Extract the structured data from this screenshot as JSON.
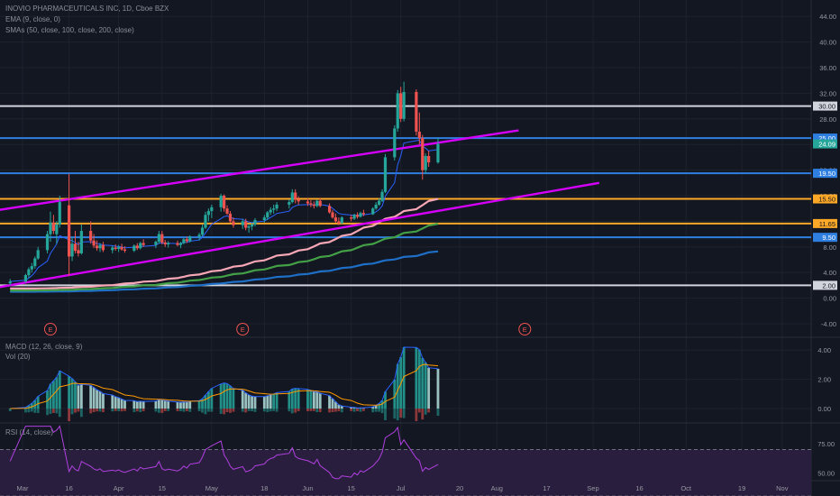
{
  "header": {
    "symbol_line": "INOVIO PHARMACEUTICALS INC, 1D, Cboe BZX",
    "ema_line": "EMA (9, close, 0)",
    "sma_line": "SMAs (50, close, 100, close, 200, close)",
    "macd_line": "MACD (12, 26, close, 9)",
    "vol_line": "Vol (20)",
    "rsi_line": "RSI (14, close)"
  },
  "colors": {
    "background": "#131722",
    "grid": "#1e222d",
    "up": "#26a69a",
    "down": "#ef5350",
    "ema": "#2962ff",
    "sma50": "#f7a7b5",
    "sma100": "#43a047",
    "sma200": "#1e6fc7",
    "trend": "#d500f9",
    "white_line": "#d1d4dc",
    "blue_line": "#2f7fe0",
    "orange_line": "#ffa726",
    "rsi_line": "#b040e0",
    "rsi_band": "#2a1e3e",
    "macd": "#2962ff",
    "signal": "#ff9800"
  },
  "x_axis": {
    "labels": [
      "Mar",
      "16",
      "Apr",
      "15",
      "May",
      "18",
      "Jun",
      "15",
      "Jul",
      "20",
      "Aug",
      "17",
      "Sep",
      "16",
      "Oct",
      "19",
      "Nov"
    ]
  },
  "price_axis": {
    "ticks": [
      "44.00",
      "40.00",
      "36.00",
      "32.00",
      "28.00",
      "24.00",
      "20.00",
      "16.00",
      "12.00",
      "8.00",
      "4.00",
      "0.00",
      "-4.00"
    ]
  },
  "macd_axis": {
    "ticks": [
      "4.00",
      "2.00",
      "0.00"
    ]
  },
  "rsi_axis": {
    "ticks": [
      "75.00",
      "50.00",
      "25.00"
    ]
  },
  "earnings_marker": "E",
  "horizontal_levels": [
    {
      "label": "30.00",
      "kind": "white"
    },
    {
      "label": "25.00",
      "kind": "blue"
    },
    {
      "label": "19.50",
      "kind": "blue"
    },
    {
      "label": "15.50",
      "kind": "orange"
    },
    {
      "label": "11.65",
      "kind": "orange"
    },
    {
      "label": "9.50",
      "kind": "blue"
    },
    {
      "label": "2.00",
      "kind": "white"
    }
  ],
  "last_price": "24.09",
  "chart_data": {
    "type": "candlestick",
    "title": "INOVIO PHARMACEUTICALS INC, 1D, Cboe BZX",
    "ylim": [
      -6,
      46
    ],
    "x_range": [
      "Feb 26",
      "Nov 10"
    ],
    "earnings_dates": [
      "Mar 10",
      "May 11",
      "Aug 10"
    ],
    "candles": [
      {
        "date": "Feb 26",
        "o": 2.3,
        "h": 3.0,
        "l": 2.0,
        "c": 2.6
      },
      {
        "date": "Mar 2",
        "o": 2.6,
        "h": 3.8,
        "l": 2.4,
        "c": 3.6
      },
      {
        "date": "Mar 3",
        "o": 3.6,
        "h": 4.8,
        "l": 3.2,
        "c": 4.5
      },
      {
        "date": "Mar 4",
        "o": 4.5,
        "h": 5.5,
        "l": 4.0,
        "c": 5.0
      },
      {
        "date": "Mar 5",
        "o": 5.0,
        "h": 6.5,
        "l": 4.6,
        "c": 6.2
      },
      {
        "date": "Mar 6",
        "o": 6.2,
        "h": 8.0,
        "l": 6.0,
        "c": 7.5
      },
      {
        "date": "Mar 9",
        "o": 7.5,
        "h": 10.5,
        "l": 7.0,
        "c": 10.0
      },
      {
        "date": "Mar 10",
        "o": 10.0,
        "h": 13.5,
        "l": 8.8,
        "c": 11.8
      },
      {
        "date": "Mar 11",
        "o": 11.8,
        "h": 13.0,
        "l": 10.0,
        "c": 10.5
      },
      {
        "date": "Mar 12",
        "o": 10.0,
        "h": 12.0,
        "l": 8.5,
        "c": 11.5
      },
      {
        "date": "Mar 13",
        "o": 11.5,
        "h": 16.0,
        "l": 11.0,
        "c": 15.0
      },
      {
        "date": "Mar 16",
        "o": 14.5,
        "h": 19.4,
        "l": 3.5,
        "c": 6.5
      },
      {
        "date": "Mar 17",
        "o": 6.5,
        "h": 9.5,
        "l": 5.8,
        "c": 8.5
      },
      {
        "date": "Mar 18",
        "o": 8.5,
        "h": 10.5,
        "l": 7.0,
        "c": 7.4
      },
      {
        "date": "Mar 19",
        "o": 7.5,
        "h": 8.8,
        "l": 6.5,
        "c": 7.0
      },
      {
        "date": "Mar 20",
        "o": 7.0,
        "h": 11.5,
        "l": 6.8,
        "c": 10.5
      },
      {
        "date": "Mar 23",
        "o": 10.5,
        "h": 12.0,
        "l": 8.5,
        "c": 9.0
      },
      {
        "date": "Mar 24",
        "o": 9.0,
        "h": 10.0,
        "l": 7.8,
        "c": 8.2
      },
      {
        "date": "Mar 25",
        "o": 8.2,
        "h": 9.0,
        "l": 7.4,
        "c": 7.8
      },
      {
        "date": "Mar 26",
        "o": 7.8,
        "h": 8.6,
        "l": 7.2,
        "c": 8.3
      },
      {
        "date": "Mar 27",
        "o": 8.3,
        "h": 8.8,
        "l": 7.2,
        "c": 7.5
      },
      {
        "date": "Mar 30",
        "o": 7.5,
        "h": 8.2,
        "l": 7.0,
        "c": 7.9
      },
      {
        "date": "Mar 31",
        "o": 7.9,
        "h": 8.4,
        "l": 7.4,
        "c": 7.7
      },
      {
        "date": "Apr 1",
        "o": 7.7,
        "h": 8.3,
        "l": 7.2,
        "c": 8.0
      },
      {
        "date": "Apr 2",
        "o": 8.0,
        "h": 8.5,
        "l": 7.4,
        "c": 7.6
      },
      {
        "date": "Apr 3",
        "o": 7.6,
        "h": 8.1,
        "l": 7.1,
        "c": 7.4
      },
      {
        "date": "Apr 6",
        "o": 7.4,
        "h": 8.4,
        "l": 7.2,
        "c": 8.2
      },
      {
        "date": "Apr 7",
        "o": 8.2,
        "h": 8.6,
        "l": 7.5,
        "c": 7.8
      },
      {
        "date": "Apr 8",
        "o": 7.8,
        "h": 8.8,
        "l": 7.6,
        "c": 8.6
      },
      {
        "date": "Apr 9",
        "o": 8.6,
        "h": 9.2,
        "l": 8.0,
        "c": 8.3
      },
      {
        "date": "Apr 13",
        "o": 8.3,
        "h": 9.0,
        "l": 7.8,
        "c": 8.8
      },
      {
        "date": "Apr 14",
        "o": 8.8,
        "h": 10.5,
        "l": 8.5,
        "c": 10.0
      },
      {
        "date": "Apr 15",
        "o": 10.0,
        "h": 10.5,
        "l": 8.4,
        "c": 8.7
      },
      {
        "date": "Apr 16",
        "o": 8.7,
        "h": 9.1,
        "l": 8.0,
        "c": 8.4
      },
      {
        "date": "Apr 17",
        "o": 8.4,
        "h": 8.9,
        "l": 7.9,
        "c": 8.6
      },
      {
        "date": "Apr 20",
        "o": 8.6,
        "h": 9.0,
        "l": 8.1,
        "c": 8.3
      },
      {
        "date": "Apr 21",
        "o": 8.3,
        "h": 8.8,
        "l": 7.8,
        "c": 8.6
      },
      {
        "date": "Apr 22",
        "o": 8.6,
        "h": 9.4,
        "l": 8.4,
        "c": 9.2
      },
      {
        "date": "Apr 23",
        "o": 9.2,
        "h": 9.6,
        "l": 8.6,
        "c": 8.9
      },
      {
        "date": "Apr 24",
        "o": 8.9,
        "h": 9.8,
        "l": 8.7,
        "c": 9.6
      },
      {
        "date": "Apr 27",
        "o": 9.6,
        "h": 10.2,
        "l": 9.0,
        "c": 9.9
      },
      {
        "date": "Apr 28",
        "o": 9.9,
        "h": 11.5,
        "l": 9.6,
        "c": 11.0
      },
      {
        "date": "Apr 29",
        "o": 11.0,
        "h": 13.5,
        "l": 10.8,
        "c": 13.0
      },
      {
        "date": "Apr 30",
        "o": 13.0,
        "h": 14.0,
        "l": 12.0,
        "c": 13.6
      },
      {
        "date": "May 1",
        "o": 13.6,
        "h": 14.6,
        "l": 12.5,
        "c": 14.2
      },
      {
        "date": "May 4",
        "o": 14.2,
        "h": 16.3,
        "l": 13.5,
        "c": 16.0
      },
      {
        "date": "May 5",
        "o": 16.0,
        "h": 16.2,
        "l": 13.5,
        "c": 14.0
      },
      {
        "date": "May 6",
        "o": 14.0,
        "h": 14.5,
        "l": 13.0,
        "c": 13.2
      },
      {
        "date": "May 7",
        "o": 13.2,
        "h": 13.6,
        "l": 11.8,
        "c": 12.0
      },
      {
        "date": "May 8",
        "o": 12.0,
        "h": 12.6,
        "l": 11.0,
        "c": 11.4
      },
      {
        "date": "May 11",
        "o": 11.4,
        "h": 12.4,
        "l": 10.8,
        "c": 12.0
      },
      {
        "date": "May 12",
        "o": 12.0,
        "h": 12.4,
        "l": 10.6,
        "c": 11.0
      },
      {
        "date": "May 13",
        "o": 11.0,
        "h": 11.6,
        "l": 10.2,
        "c": 11.2
      },
      {
        "date": "May 14",
        "o": 11.2,
        "h": 11.8,
        "l": 10.6,
        "c": 11.5
      },
      {
        "date": "May 15",
        "o": 11.5,
        "h": 12.5,
        "l": 11.2,
        "c": 12.2
      },
      {
        "date": "May 18",
        "o": 12.2,
        "h": 13.0,
        "l": 11.8,
        "c": 12.6
      },
      {
        "date": "May 19",
        "o": 12.6,
        "h": 13.6,
        "l": 12.2,
        "c": 13.4
      },
      {
        "date": "May 20",
        "o": 13.4,
        "h": 14.2,
        "l": 13.0,
        "c": 13.8
      },
      {
        "date": "May 21",
        "o": 13.8,
        "h": 14.6,
        "l": 13.2,
        "c": 14.0
      },
      {
        "date": "May 22",
        "o": 14.0,
        "h": 15.0,
        "l": 13.6,
        "c": 14.6
      },
      {
        "date": "May 26",
        "o": 14.6,
        "h": 15.4,
        "l": 14.0,
        "c": 15.0
      },
      {
        "date": "May 27",
        "o": 15.0,
        "h": 17.0,
        "l": 14.8,
        "c": 16.5
      },
      {
        "date": "May 28",
        "o": 16.5,
        "h": 17.0,
        "l": 14.8,
        "c": 15.4
      },
      {
        "date": "May 29",
        "o": 15.4,
        "h": 15.9,
        "l": 14.6,
        "c": 15.1
      },
      {
        "date": "Jun 1",
        "o": 15.1,
        "h": 15.6,
        "l": 14.4,
        "c": 14.8
      },
      {
        "date": "Jun 2",
        "o": 14.8,
        "h": 15.3,
        "l": 14.2,
        "c": 14.6
      },
      {
        "date": "Jun 3",
        "o": 14.6,
        "h": 15.1,
        "l": 14.0,
        "c": 14.4
      },
      {
        "date": "Jun 4",
        "o": 14.4,
        "h": 15.4,
        "l": 14.2,
        "c": 15.2
      },
      {
        "date": "Jun 5",
        "o": 15.2,
        "h": 15.6,
        "l": 14.2,
        "c": 14.4
      },
      {
        "date": "Jun 8",
        "o": 14.4,
        "h": 14.8,
        "l": 13.2,
        "c": 13.4
      },
      {
        "date": "Jun 9",
        "o": 13.4,
        "h": 13.8,
        "l": 12.4,
        "c": 12.6
      },
      {
        "date": "Jun 10",
        "o": 12.6,
        "h": 13.2,
        "l": 11.8,
        "c": 12.0
      },
      {
        "date": "Jun 11",
        "o": 12.0,
        "h": 12.6,
        "l": 11.4,
        "c": 11.7
      },
      {
        "date": "Jun 12",
        "o": 11.7,
        "h": 12.8,
        "l": 11.6,
        "c": 12.6
      },
      {
        "date": "Jun 15",
        "o": 12.6,
        "h": 13.0,
        "l": 12.0,
        "c": 12.4
      },
      {
        "date": "Jun 16",
        "o": 12.4,
        "h": 13.2,
        "l": 12.2,
        "c": 13.0
      },
      {
        "date": "Jun 17",
        "o": 13.0,
        "h": 13.4,
        "l": 12.4,
        "c": 12.7
      },
      {
        "date": "Jun 18",
        "o": 12.7,
        "h": 13.5,
        "l": 12.6,
        "c": 13.3
      },
      {
        "date": "Jun 19",
        "o": 13.3,
        "h": 13.8,
        "l": 12.8,
        "c": 13.1
      },
      {
        "date": "Jun 22",
        "o": 13.1,
        "h": 14.2,
        "l": 13.0,
        "c": 14.0
      },
      {
        "date": "Jun 23",
        "o": 14.0,
        "h": 15.0,
        "l": 13.8,
        "c": 14.6
      },
      {
        "date": "Jun 24",
        "o": 14.6,
        "h": 15.6,
        "l": 14.4,
        "c": 15.2
      },
      {
        "date": "Jun 25",
        "o": 15.2,
        "h": 17.0,
        "l": 15.0,
        "c": 16.6
      },
      {
        "date": "Jun 26",
        "o": 16.6,
        "h": 22.5,
        "l": 16.4,
        "c": 22.0
      },
      {
        "date": "Jun 29",
        "o": 22.0,
        "h": 27.0,
        "l": 21.5,
        "c": 26.5
      },
      {
        "date": "Jun 30",
        "o": 26.5,
        "h": 32.5,
        "l": 26.0,
        "c": 32.0
      },
      {
        "date": "Jul 1",
        "o": 32.0,
        "h": 33.0,
        "l": 27.5,
        "c": 28.0
      },
      {
        "date": "Jul 2",
        "o": 28.0,
        "h": 33.8,
        "l": 27.6,
        "c": 32.2
      },
      {
        "date": "Jul 6",
        "o": 32.2,
        "h": 32.6,
        "l": 25.4,
        "c": 26.0
      },
      {
        "date": "Jul 7",
        "o": 26.0,
        "h": 29.0,
        "l": 24.0,
        "c": 25.0
      },
      {
        "date": "Jul 8",
        "o": 25.0,
        "h": 25.5,
        "l": 18.5,
        "c": 20.0
      },
      {
        "date": "Jul 9",
        "o": 20.0,
        "h": 22.6,
        "l": 19.4,
        "c": 22.2
      },
      {
        "date": "Jul 10",
        "o": 22.2,
        "h": 23.0,
        "l": 20.5,
        "c": 21.2
      },
      {
        "date": "Jul 13",
        "o": 21.2,
        "h": 25.0,
        "l": 21.0,
        "c": 24.09
      }
    ],
    "ema9_end": 24.0,
    "sma50_range": [
      1.5,
      15.5
    ],
    "sma100_range": [
      1.2,
      11.6
    ],
    "sma200_range": [
      1.0,
      7.3
    ],
    "levels": [
      30.0,
      25.0,
      19.5,
      15.5,
      11.65,
      9.5,
      2.0
    ],
    "trendlines": [
      {
        "from": {
          "date": "Feb 26",
          "price": 13.5
        },
        "to": {
          "date": "Aug 8",
          "price": 26.2
        }
      },
      {
        "from": {
          "date": "Feb 26",
          "price": 1.4
        },
        "to": {
          "date": "Sep 3",
          "price": 18.0
        }
      }
    ],
    "macd": {
      "ylim": [
        -1.0,
        4.5
      ],
      "ticks": [
        4.0,
        2.0,
        0.0
      ]
    },
    "rsi": {
      "ylim": [
        22,
        95
      ],
      "band": [
        30,
        70
      ],
      "ticks": [
        75,
        50,
        25
      ]
    }
  }
}
